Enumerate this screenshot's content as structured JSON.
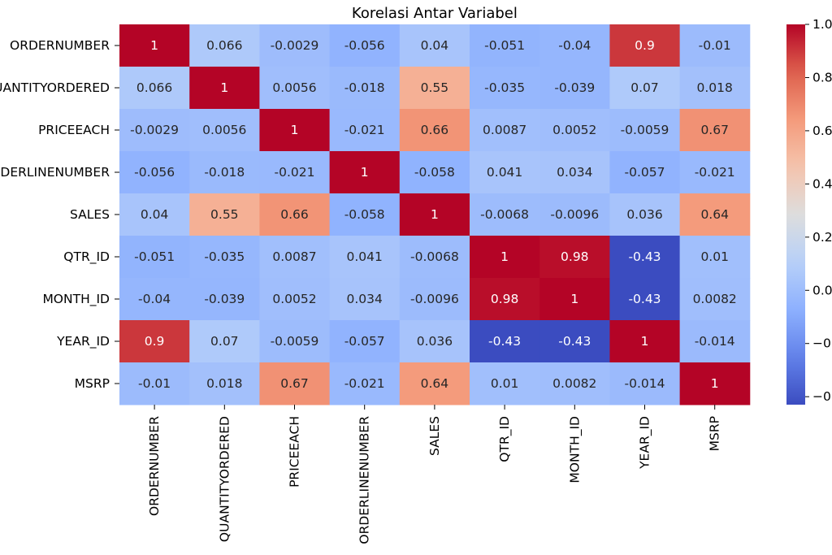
{
  "chart_data": {
    "type": "heatmap",
    "title": "Korelasi Antar Variabel",
    "colormap": "coolwarm",
    "row_labels": [
      "ORDERNUMBER",
      "QUANTITYORDERED",
      "PRICEEACH",
      "ORDERLINENUMBER",
      "SALES",
      "QTR_ID",
      "MONTH_ID",
      "YEAR_ID",
      "MSRP"
    ],
    "col_labels": [
      "ORDERNUMBER",
      "QUANTITYORDERED",
      "PRICEEACH",
      "ORDERLINENUMBER",
      "SALES",
      "QTR_ID",
      "MONTH_ID",
      "YEAR_ID",
      "MSRP"
    ],
    "values": [
      [
        1,
        0.066,
        -0.0029,
        -0.056,
        0.04,
        -0.051,
        -0.04,
        0.9,
        -0.01
      ],
      [
        0.066,
        1,
        0.0056,
        -0.018,
        0.55,
        -0.035,
        -0.039,
        0.07,
        0.018
      ],
      [
        -0.0029,
        0.0056,
        1,
        -0.021,
        0.66,
        0.0087,
        0.0052,
        -0.0059,
        0.67
      ],
      [
        -0.056,
        -0.018,
        -0.021,
        1,
        -0.058,
        0.041,
        0.034,
        -0.057,
        -0.021
      ],
      [
        0.04,
        0.55,
        0.66,
        -0.058,
        1,
        -0.0068,
        -0.0096,
        0.036,
        0.64
      ],
      [
        -0.051,
        -0.035,
        0.0087,
        0.041,
        -0.0068,
        1,
        0.98,
        -0.43,
        0.01
      ],
      [
        -0.04,
        -0.039,
        0.0052,
        0.034,
        -0.0096,
        0.98,
        1,
        -0.43,
        0.0082
      ],
      [
        0.9,
        0.07,
        -0.0059,
        -0.057,
        0.036,
        -0.43,
        -0.43,
        1,
        -0.014
      ],
      [
        -0.01,
        0.018,
        0.67,
        -0.021,
        0.64,
        0.01,
        0.0082,
        -0.014,
        1
      ]
    ],
    "colorbar": {
      "range": [
        -0.43,
        1.0
      ],
      "ticks": [
        1.0,
        0.8,
        0.6,
        0.4,
        0.2,
        0.0,
        -0.2,
        -0.4
      ],
      "tick_labels": [
        "1.0",
        "0.8",
        "0.6",
        "0.4",
        "0.2",
        "0.0",
        "−0.2",
        "−0.4"
      ]
    }
  }
}
